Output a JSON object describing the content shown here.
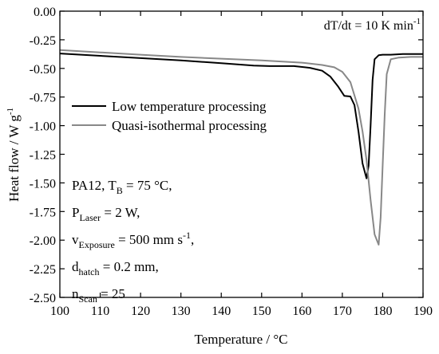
{
  "chart_data": {
    "type": "line",
    "xlabel": "Temperature / °C",
    "ylabel": {
      "main": "Heat flow / W g",
      "sup": "-1"
    },
    "xlim": [
      100,
      190
    ],
    "ylim": [
      -2.5,
      0.0
    ],
    "x_ticks": [
      100,
      110,
      120,
      130,
      140,
      150,
      160,
      170,
      180,
      190
    ],
    "y_ticks": [
      0.0,
      -0.25,
      -0.5,
      -0.75,
      -1.0,
      -1.25,
      -1.5,
      -1.75,
      -2.0,
      -2.25,
      -2.5
    ],
    "x_tick_labels": [
      "100",
      "110",
      "120",
      "130",
      "140",
      "150",
      "160",
      "170",
      "180",
      "190"
    ],
    "y_tick_labels": [
      "0.00",
      "-0.25",
      "-0.50",
      "-0.75",
      "-1.00",
      "-1.25",
      "-1.50",
      "-1.75",
      "-2.00",
      "-2.25",
      "-2.50"
    ],
    "grid": false,
    "legend_placement": "upper-left",
    "series": [
      {
        "name": "Low temperature processing",
        "color": "#000000",
        "x": [
          100,
          110,
          120,
          130,
          140,
          148,
          152,
          158,
          162,
          165,
          167,
          169,
          170.5,
          172,
          173,
          174,
          175,
          176,
          176.5,
          177,
          177.5,
          178,
          179,
          180,
          182,
          185,
          190
        ],
        "y": [
          -0.37,
          -0.39,
          -0.41,
          -0.43,
          -0.455,
          -0.475,
          -0.48,
          -0.48,
          -0.495,
          -0.52,
          -0.57,
          -0.66,
          -0.74,
          -0.745,
          -0.82,
          -1.05,
          -1.33,
          -1.46,
          -1.35,
          -1.0,
          -0.6,
          -0.42,
          -0.385,
          -0.38,
          -0.38,
          -0.375,
          -0.375
        ]
      },
      {
        "name": "Quasi-isothermal processing",
        "color": "#888888",
        "x": [
          100,
          110,
          120,
          130,
          140,
          150,
          160,
          165,
          168,
          170,
          172,
          174,
          175,
          176,
          177,
          178,
          179,
          179.5,
          180,
          180.5,
          181,
          182,
          184,
          187,
          190
        ],
        "y": [
          -0.34,
          -0.36,
          -0.38,
          -0.4,
          -0.415,
          -0.43,
          -0.45,
          -0.47,
          -0.49,
          -0.53,
          -0.62,
          -0.85,
          -1.05,
          -1.3,
          -1.65,
          -1.95,
          -2.04,
          -1.8,
          -1.35,
          -0.9,
          -0.55,
          -0.42,
          -0.405,
          -0.4,
          -0.4
        ]
      }
    ],
    "annotations": {
      "rate": {
        "text": "dT/dt = 10 K min",
        "sup": "-1"
      },
      "conditions": [
        [
          {
            "t": "PA12, T"
          },
          {
            "t": "B",
            "sub": true
          },
          {
            "t": " = 75 °C,"
          }
        ],
        [
          {
            "t": "P"
          },
          {
            "t": "Laser",
            "sub": true
          },
          {
            "t": " = 2 W,"
          }
        ],
        [
          {
            "t": "v"
          },
          {
            "t": "Exposure",
            "sub": true
          },
          {
            "t": " = 500 mm s"
          },
          {
            "t": "-1",
            "sup": true
          },
          {
            "t": ","
          }
        ],
        [
          {
            "t": "d"
          },
          {
            "t": "hatch",
            "sub": true
          },
          {
            "t": " = 0.2 mm,"
          }
        ],
        [
          {
            "t": "n"
          },
          {
            "t": "Scan",
            "sub": true
          },
          {
            "t": " = 25"
          }
        ]
      ]
    }
  }
}
